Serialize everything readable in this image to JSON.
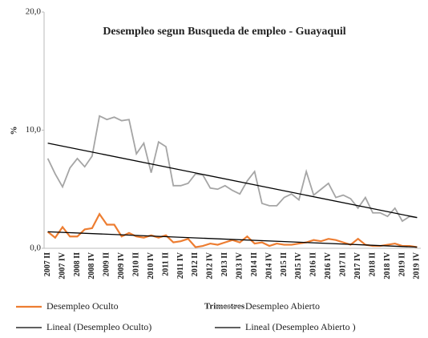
{
  "chart_data": {
    "type": "line",
    "title": "Desempleo segun Busqueda de empleo - Guayaquil",
    "x_label": "Trimestres",
    "y_label": "%",
    "categories": [
      "2007 II",
      null,
      "2007 IV",
      null,
      "2008 II",
      null,
      "2008 IV",
      null,
      "2009 II",
      null,
      "2009 IV",
      null,
      "2010 II",
      null,
      "2010 IV",
      null,
      "2011 II",
      null,
      "2011 IV",
      null,
      "2012 II",
      null,
      "2012 IV",
      null,
      "2013 II",
      null,
      "2013 IV",
      null,
      "2014 II",
      null,
      "2014 IV",
      null,
      "2015 II",
      null,
      "2015 IV",
      null,
      "2016 II",
      null,
      "2016 IV",
      null,
      "2017 II",
      null,
      "2017 IV",
      null,
      "2018 II",
      null,
      "2018 IV",
      null,
      "2019 II",
      null,
      "2019 IV"
    ],
    "series": [
      {
        "name": "Desempleo Oculto",
        "color": "#ED7D31",
        "values": [
          1.4,
          0.9,
          1.8,
          1.0,
          1.0,
          1.6,
          1.7,
          2.9,
          2.0,
          2.0,
          1.0,
          1.3,
          1.0,
          0.9,
          1.1,
          0.9,
          1.1,
          0.5,
          0.6,
          0.8,
          0.1,
          0.2,
          0.4,
          0.3,
          0.5,
          0.7,
          0.5,
          1.0,
          0.4,
          0.5,
          0.2,
          0.4,
          0.3,
          0.3,
          0.4,
          0.5,
          0.7,
          0.6,
          0.8,
          0.7,
          0.5,
          0.3,
          0.8,
          0.3,
          0.2,
          0.2,
          0.3,
          0.4,
          0.2,
          0.2,
          0.1
        ]
      },
      {
        "name": "Desempleo Abierto",
        "color": "#A5A5A5",
        "values": [
          7.6,
          6.3,
          5.2,
          6.8,
          7.6,
          6.9,
          7.8,
          11.2,
          10.9,
          11.1,
          10.8,
          10.9,
          8.0,
          8.9,
          6.4,
          9.0,
          8.6,
          5.3,
          5.3,
          5.5,
          6.3,
          6.2,
          5.1,
          5.0,
          5.3,
          4.9,
          4.6,
          5.7,
          6.5,
          3.8,
          3.6,
          3.6,
          4.3,
          4.6,
          4.1,
          6.5,
          4.5,
          5.0,
          5.5,
          4.3,
          4.5,
          4.2,
          3.4,
          4.3,
          3.0,
          3.0,
          2.7,
          3.4,
          2.3,
          2.7,
          2.6
        ]
      }
    ],
    "trendlines": [
      {
        "name": "Lineal (Desempleo Oculto)",
        "color": "#000000",
        "values": [
          1.4,
          0.1
        ]
      },
      {
        "name": "Lineal (Desempleo Abierto )",
        "color": "#000000",
        "values": [
          8.9,
          2.6
        ]
      }
    ],
    "ylim": [
      0,
      20
    ],
    "yticks": [
      {
        "value": 0,
        "label": "0,0"
      },
      {
        "value": 10,
        "label": "10,0"
      },
      {
        "value": 20,
        "label": "20,0"
      }
    ],
    "grid": false,
    "legend": "bottom"
  }
}
